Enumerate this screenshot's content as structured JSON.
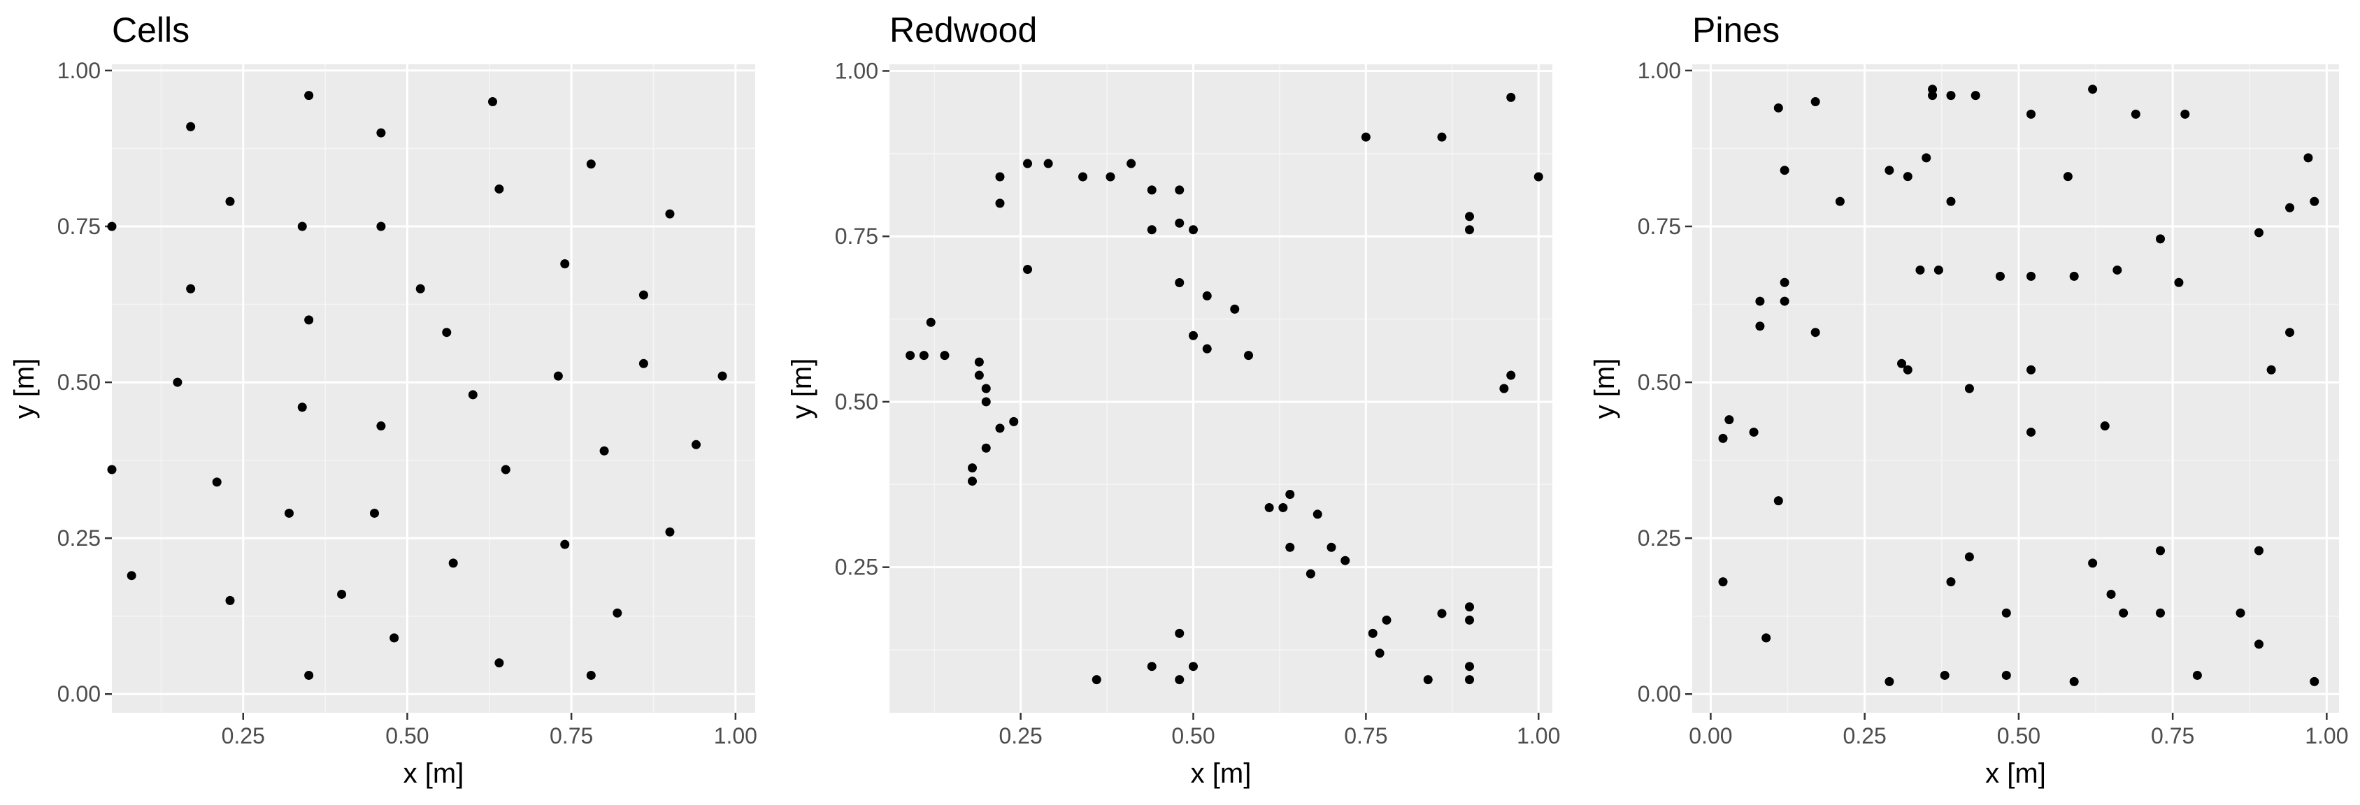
{
  "chart_data": [
    {
      "type": "scatter",
      "title": "Cells",
      "xlabel": "x [m]",
      "ylabel": "y [m]",
      "xlim": [
        0.0,
        1.0
      ],
      "ylim": [
        0.0,
        1.0
      ],
      "xticks": [
        0.25,
        0.5,
        0.75,
        1.0
      ],
      "xtick_labels": [
        "0.25",
        "0.50",
        "0.75",
        "1.00"
      ],
      "yticks": [
        0.0,
        0.25,
        0.5,
        0.75,
        1.0
      ],
      "ytick_labels": [
        "0.00",
        "0.25",
        "0.50",
        "0.75",
        "1.00"
      ],
      "grid": true,
      "points": [
        [
          0.35,
          0.96
        ],
        [
          0.17,
          0.91
        ],
        [
          0.63,
          0.95
        ],
        [
          0.46,
          0.9
        ],
        [
          0.78,
          0.85
        ],
        [
          0.05,
          0.75
        ],
        [
          0.23,
          0.79
        ],
        [
          0.34,
          0.75
        ],
        [
          0.46,
          0.75
        ],
        [
          0.64,
          0.81
        ],
        [
          0.9,
          0.77
        ],
        [
          0.17,
          0.65
        ],
        [
          0.52,
          0.65
        ],
        [
          0.74,
          0.69
        ],
        [
          0.86,
          0.64
        ],
        [
          0.35,
          0.6
        ],
        [
          0.56,
          0.58
        ],
        [
          0.15,
          0.5
        ],
        [
          0.73,
          0.51
        ],
        [
          0.86,
          0.53
        ],
        [
          0.98,
          0.51
        ],
        [
          0.34,
          0.46
        ],
        [
          0.6,
          0.48
        ],
        [
          0.46,
          0.43
        ],
        [
          0.05,
          0.36
        ],
        [
          0.65,
          0.36
        ],
        [
          0.8,
          0.39
        ],
        [
          0.94,
          0.4
        ],
        [
          0.21,
          0.34
        ],
        [
          0.32,
          0.29
        ],
        [
          0.45,
          0.29
        ],
        [
          0.9,
          0.26
        ],
        [
          0.74,
          0.24
        ],
        [
          0.57,
          0.21
        ],
        [
          0.08,
          0.19
        ],
        [
          0.23,
          0.15
        ],
        [
          0.4,
          0.16
        ],
        [
          0.82,
          0.13
        ],
        [
          0.48,
          0.09
        ],
        [
          0.64,
          0.05
        ],
        [
          0.35,
          0.03
        ],
        [
          0.78,
          0.03
        ]
      ]
    },
    {
      "type": "scatter",
      "title": "Redwood",
      "xlabel": "x [m]",
      "ylabel": "y [m]",
      "xlim": [
        0.0,
        1.0
      ],
      "ylim": [
        0.0,
        1.0
      ],
      "xticks": [
        0.25,
        0.5,
        0.75,
        1.0
      ],
      "xtick_labels": [
        "0.25",
        "0.50",
        "0.75",
        "1.00"
      ],
      "yticks": [
        0.25,
        0.5,
        0.75,
        1.0
      ],
      "ytick_labels": [
        "0.25",
        "0.50",
        "0.75",
        "1.00"
      ],
      "grid": true,
      "points": [
        [
          0.75,
          0.9
        ],
        [
          0.86,
          0.9
        ],
        [
          0.96,
          0.96
        ],
        [
          1.0,
          0.84
        ],
        [
          0.9,
          0.78
        ],
        [
          0.9,
          0.76
        ],
        [
          0.22,
          0.84
        ],
        [
          0.26,
          0.86
        ],
        [
          0.29,
          0.86
        ],
        [
          0.34,
          0.84
        ],
        [
          0.38,
          0.84
        ],
        [
          0.41,
          0.86
        ],
        [
          0.44,
          0.82
        ],
        [
          0.48,
          0.82
        ],
        [
          0.22,
          0.8
        ],
        [
          0.44,
          0.76
        ],
        [
          0.48,
          0.77
        ],
        [
          0.5,
          0.76
        ],
        [
          0.26,
          0.7
        ],
        [
          0.48,
          0.68
        ],
        [
          0.52,
          0.66
        ],
        [
          0.56,
          0.64
        ],
        [
          0.12,
          0.62
        ],
        [
          0.09,
          0.57
        ],
        [
          0.11,
          0.57
        ],
        [
          0.14,
          0.57
        ],
        [
          0.5,
          0.6
        ],
        [
          0.52,
          0.58
        ],
        [
          0.58,
          0.57
        ],
        [
          0.19,
          0.56
        ],
        [
          0.19,
          0.54
        ],
        [
          0.2,
          0.52
        ],
        [
          0.2,
          0.5
        ],
        [
          0.95,
          0.52
        ],
        [
          0.96,
          0.54
        ],
        [
          0.24,
          0.47
        ],
        [
          0.22,
          0.46
        ],
        [
          0.2,
          0.43
        ],
        [
          0.18,
          0.4
        ],
        [
          0.18,
          0.38
        ],
        [
          0.61,
          0.34
        ],
        [
          0.63,
          0.34
        ],
        [
          0.64,
          0.36
        ],
        [
          0.68,
          0.33
        ],
        [
          0.64,
          0.28
        ],
        [
          0.7,
          0.28
        ],
        [
          0.72,
          0.26
        ],
        [
          0.67,
          0.24
        ],
        [
          0.76,
          0.15
        ],
        [
          0.78,
          0.17
        ],
        [
          0.77,
          0.12
        ],
        [
          0.86,
          0.18
        ],
        [
          0.9,
          0.19
        ],
        [
          0.9,
          0.17
        ],
        [
          0.48,
          0.15
        ],
        [
          0.36,
          0.08
        ],
        [
          0.44,
          0.1
        ],
        [
          0.48,
          0.08
        ],
        [
          0.5,
          0.1
        ],
        [
          0.84,
          0.08
        ],
        [
          0.9,
          0.1
        ],
        [
          0.9,
          0.08
        ]
      ]
    },
    {
      "type": "scatter",
      "title": "Pines",
      "xlabel": "x [m]",
      "ylabel": "y [m]",
      "xlim": [
        0.0,
        1.0
      ],
      "ylim": [
        0.0,
        1.0
      ],
      "xticks": [
        0.0,
        0.25,
        0.5,
        0.75,
        1.0
      ],
      "xtick_labels": [
        "0.00",
        "0.25",
        "0.50",
        "0.75",
        "1.00"
      ],
      "yticks": [
        0.0,
        0.25,
        0.5,
        0.75,
        1.0
      ],
      "ytick_labels": [
        "0.00",
        "0.25",
        "0.50",
        "0.75",
        "1.00"
      ],
      "grid": true,
      "points": [
        [
          0.11,
          0.94
        ],
        [
          0.17,
          0.95
        ],
        [
          0.36,
          0.97
        ],
        [
          0.36,
          0.96
        ],
        [
          0.39,
          0.96
        ],
        [
          0.43,
          0.96
        ],
        [
          0.62,
          0.97
        ],
        [
          0.69,
          0.93
        ],
        [
          0.77,
          0.93
        ],
        [
          0.52,
          0.93
        ],
        [
          0.97,
          0.86
        ],
        [
          0.98,
          0.79
        ],
        [
          0.94,
          0.78
        ],
        [
          0.12,
          0.84
        ],
        [
          0.21,
          0.79
        ],
        [
          0.29,
          0.84
        ],
        [
          0.32,
          0.83
        ],
        [
          0.35,
          0.86
        ],
        [
          0.39,
          0.79
        ],
        [
          0.58,
          0.83
        ],
        [
          0.73,
          0.73
        ],
        [
          0.89,
          0.74
        ],
        [
          0.34,
          0.68
        ],
        [
          0.37,
          0.68
        ],
        [
          0.47,
          0.67
        ],
        [
          0.52,
          0.67
        ],
        [
          0.59,
          0.67
        ],
        [
          0.66,
          0.68
        ],
        [
          0.76,
          0.66
        ],
        [
          0.12,
          0.66
        ],
        [
          0.12,
          0.63
        ],
        [
          0.08,
          0.63
        ],
        [
          0.08,
          0.59
        ],
        [
          0.17,
          0.58
        ],
        [
          0.94,
          0.58
        ],
        [
          0.31,
          0.53
        ],
        [
          0.32,
          0.52
        ],
        [
          0.52,
          0.52
        ],
        [
          0.91,
          0.52
        ],
        [
          0.42,
          0.49
        ],
        [
          0.03,
          0.44
        ],
        [
          0.02,
          0.41
        ],
        [
          0.07,
          0.42
        ],
        [
          0.52,
          0.42
        ],
        [
          0.64,
          0.43
        ],
        [
          0.11,
          0.31
        ],
        [
          0.42,
          0.22
        ],
        [
          0.62,
          0.21
        ],
        [
          0.73,
          0.23
        ],
        [
          0.89,
          0.23
        ],
        [
          0.02,
          0.18
        ],
        [
          0.39,
          0.18
        ],
        [
          0.65,
          0.16
        ],
        [
          0.67,
          0.13
        ],
        [
          0.73,
          0.13
        ],
        [
          0.86,
          0.13
        ],
        [
          0.48,
          0.13
        ],
        [
          0.09,
          0.09
        ],
        [
          0.89,
          0.08
        ],
        [
          0.29,
          0.02
        ],
        [
          0.38,
          0.03
        ],
        [
          0.48,
          0.03
        ],
        [
          0.59,
          0.02
        ],
        [
          0.79,
          0.03
        ],
        [
          0.98,
          0.02
        ]
      ]
    }
  ]
}
